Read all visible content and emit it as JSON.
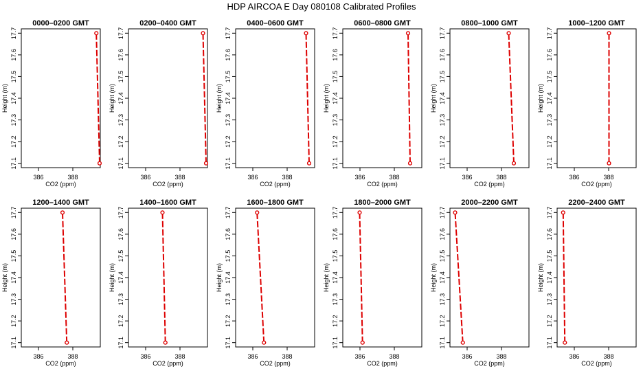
{
  "figure": {
    "title": "HDP  AIRCOA E  Day 080108  Calibrated Profiles",
    "colors": {
      "line": "#dd0000",
      "axis": "#000000",
      "background": "#ffffff"
    }
  },
  "chart_data": [
    {
      "type": "line",
      "title": "0000–0200 GMT",
      "xlabel": "CO2 (ppm)",
      "ylabel": "Height (m)",
      "xticks": [
        "386",
        "388"
      ],
      "yticks": [
        "17.1",
        "17.2",
        "17.3",
        "17.4",
        "17.5",
        "17.6",
        "17.7"
      ],
      "xlim": [
        385.0,
        389.6
      ],
      "ylim": [
        17.08,
        17.72
      ],
      "grid": false,
      "series": [
        {
          "x": [
            389.56,
            389.37
          ],
          "y": [
            17.1,
            17.7
          ]
        }
      ]
    },
    {
      "type": "line",
      "title": "0200–0400 GMT",
      "xlabel": "CO2 (ppm)",
      "ylabel": "Height (m)",
      "xticks": [
        "386",
        "388"
      ],
      "yticks": [
        "17.1",
        "17.2",
        "17.3",
        "17.4",
        "17.5",
        "17.6",
        "17.7"
      ],
      "xlim": [
        385.0,
        389.6
      ],
      "ylim": [
        17.08,
        17.72
      ],
      "grid": false,
      "series": [
        {
          "x": [
            389.52,
            389.34
          ],
          "y": [
            17.1,
            17.7
          ]
        }
      ]
    },
    {
      "type": "line",
      "title": "0400–0600 GMT",
      "xlabel": "CO2 (ppm)",
      "ylabel": "Height (m)",
      "xticks": [
        "386",
        "388"
      ],
      "yticks": [
        "17.1",
        "17.2",
        "17.3",
        "17.4",
        "17.5",
        "17.6",
        "17.7"
      ],
      "xlim": [
        385.0,
        389.6
      ],
      "ylim": [
        17.08,
        17.72
      ],
      "grid": false,
      "series": [
        {
          "x": [
            389.28,
            389.1
          ],
          "y": [
            17.1,
            17.7
          ]
        }
      ]
    },
    {
      "type": "line",
      "title": "0600–0800 GMT",
      "xlabel": "CO2 (ppm)",
      "ylabel": "Height (m)",
      "xticks": [
        "386",
        "388"
      ],
      "yticks": [
        "17.1",
        "17.2",
        "17.3",
        "17.4",
        "17.5",
        "17.6",
        "17.7"
      ],
      "xlim": [
        385.0,
        389.6
      ],
      "ylim": [
        17.08,
        17.72
      ],
      "grid": false,
      "series": [
        {
          "x": [
            388.92,
            388.8
          ],
          "y": [
            17.1,
            17.7
          ]
        }
      ]
    },
    {
      "type": "line",
      "title": "0800–1000 GMT",
      "xlabel": "CO2 (ppm)",
      "ylabel": "Height (m)",
      "xticks": [
        "386",
        "388"
      ],
      "yticks": [
        "17.1",
        "17.2",
        "17.3",
        "17.4",
        "17.5",
        "17.6",
        "17.7"
      ],
      "xlim": [
        385.0,
        389.6
      ],
      "ylim": [
        17.08,
        17.72
      ],
      "grid": false,
      "series": [
        {
          "x": [
            388.72,
            388.42
          ],
          "y": [
            17.1,
            17.7
          ]
        }
      ]
    },
    {
      "type": "line",
      "title": "1000–1200 GMT",
      "xlabel": "CO2 (ppm)",
      "ylabel": "Height (m)",
      "xticks": [
        "386",
        "388"
      ],
      "yticks": [
        "17.1",
        "17.2",
        "17.3",
        "17.4",
        "17.5",
        "17.6",
        "17.7"
      ],
      "xlim": [
        385.0,
        389.6
      ],
      "ylim": [
        17.08,
        17.72
      ],
      "grid": false,
      "series": [
        {
          "x": [
            388.02,
            388.02
          ],
          "y": [
            17.1,
            17.7
          ]
        }
      ]
    },
    {
      "type": "line",
      "title": "1200–1400 GMT",
      "xlabel": "CO2 (ppm)",
      "ylabel": "Height (m)",
      "xticks": [
        "386",
        "388"
      ],
      "yticks": [
        "17.1",
        "17.2",
        "17.3",
        "17.4",
        "17.5",
        "17.6",
        "17.7"
      ],
      "xlim": [
        385.0,
        389.6
      ],
      "ylim": [
        17.08,
        17.72
      ],
      "grid": false,
      "series": [
        {
          "x": [
            387.65,
            387.4
          ],
          "y": [
            17.1,
            17.7
          ]
        }
      ]
    },
    {
      "type": "line",
      "title": "1400–1600 GMT",
      "xlabel": "CO2 (ppm)",
      "ylabel": "Height (m)",
      "xticks": [
        "386",
        "388"
      ],
      "yticks": [
        "17.1",
        "17.2",
        "17.3",
        "17.4",
        "17.5",
        "17.6",
        "17.7"
      ],
      "xlim": [
        385.0,
        389.6
      ],
      "ylim": [
        17.08,
        17.72
      ],
      "grid": false,
      "series": [
        {
          "x": [
            387.15,
            386.98
          ],
          "y": [
            17.1,
            17.7
          ]
        }
      ]
    },
    {
      "type": "line",
      "title": "1600–1800 GMT",
      "xlabel": "CO2 (ppm)",
      "ylabel": "Height (m)",
      "xticks": [
        "386",
        "388"
      ],
      "yticks": [
        "17.1",
        "17.2",
        "17.3",
        "17.4",
        "17.5",
        "17.6",
        "17.7"
      ],
      "xlim": [
        385.0,
        389.6
      ],
      "ylim": [
        17.08,
        17.72
      ],
      "grid": false,
      "series": [
        {
          "x": [
            386.65,
            386.25
          ],
          "y": [
            17.1,
            17.7
          ]
        }
      ]
    },
    {
      "type": "line",
      "title": "1800–2000 GMT",
      "xlabel": "CO2 (ppm)",
      "ylabel": "Height (m)",
      "xticks": [
        "386",
        "388"
      ],
      "yticks": [
        "17.1",
        "17.2",
        "17.3",
        "17.4",
        "17.5",
        "17.6",
        "17.7"
      ],
      "xlim": [
        385.0,
        389.6
      ],
      "ylim": [
        17.08,
        17.72
      ],
      "grid": false,
      "series": [
        {
          "x": [
            386.15,
            385.98
          ],
          "y": [
            17.1,
            17.7
          ]
        }
      ]
    },
    {
      "type": "line",
      "title": "2000–2200 GMT",
      "xlabel": "CO2 (ppm)",
      "ylabel": "Height (m)",
      "xticks": [
        "386",
        "388"
      ],
      "yticks": [
        "17.1",
        "17.2",
        "17.3",
        "17.4",
        "17.5",
        "17.6",
        "17.7"
      ],
      "xlim": [
        385.0,
        389.6
      ],
      "ylim": [
        17.08,
        17.72
      ],
      "grid": false,
      "series": [
        {
          "x": [
            385.75,
            385.3
          ],
          "y": [
            17.1,
            17.7
          ]
        }
      ]
    },
    {
      "type": "line",
      "title": "2200–2400 GMT",
      "xlabel": "CO2 (ppm)",
      "ylabel": "Height (m)",
      "xticks": [
        "386",
        "388"
      ],
      "yticks": [
        "17.1",
        "17.2",
        "17.3",
        "17.4",
        "17.5",
        "17.6",
        "17.7"
      ],
      "xlim": [
        385.0,
        389.6
      ],
      "ylim": [
        17.08,
        17.72
      ],
      "grid": false,
      "series": [
        {
          "x": [
            385.45,
            385.35
          ],
          "y": [
            17.1,
            17.7
          ]
        }
      ]
    }
  ]
}
